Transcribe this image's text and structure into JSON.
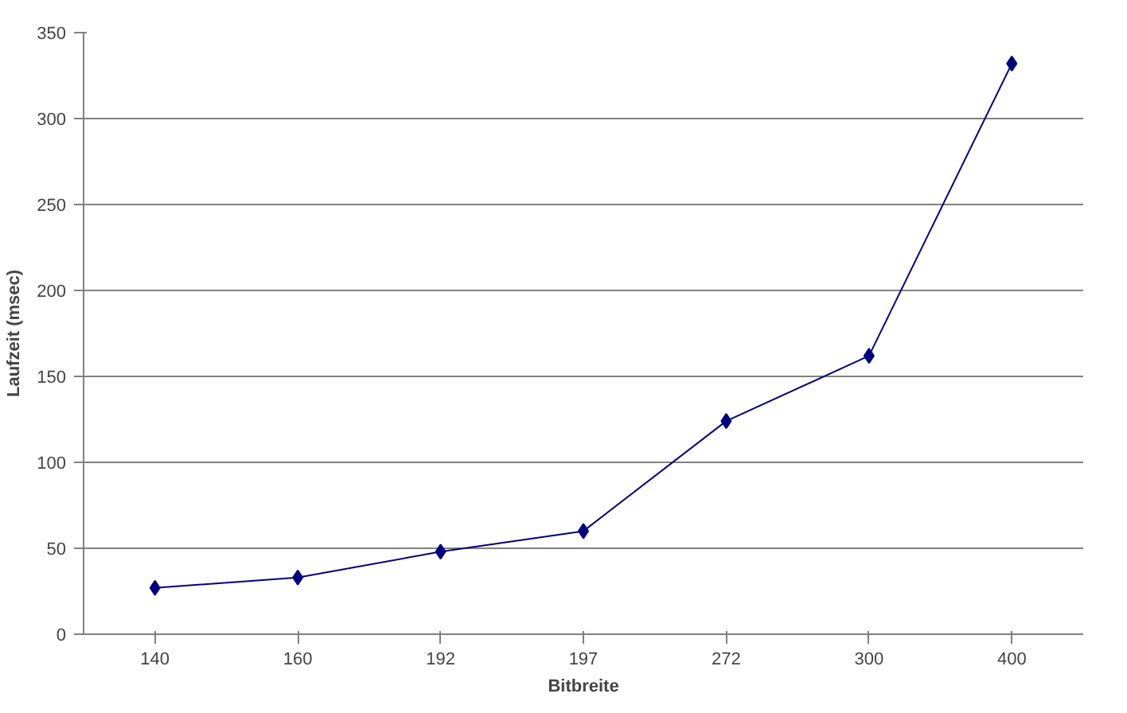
{
  "chart_data": {
    "type": "line",
    "xlabel": "Bitbreite",
    "ylabel": "Laufzeit (msec)",
    "categories": [
      "140",
      "160",
      "192",
      "197",
      "272",
      "300",
      "400"
    ],
    "series": [
      {
        "color": "#000080",
        "values": [
          27,
          33,
          48,
          60,
          124,
          162,
          332
        ]
      }
    ],
    "ylim": [
      0,
      350
    ],
    "yticks": [
      0,
      50,
      100,
      150,
      200,
      250,
      300,
      350
    ],
    "grid": "y",
    "marker": "diamond",
    "line_style": "solid"
  }
}
